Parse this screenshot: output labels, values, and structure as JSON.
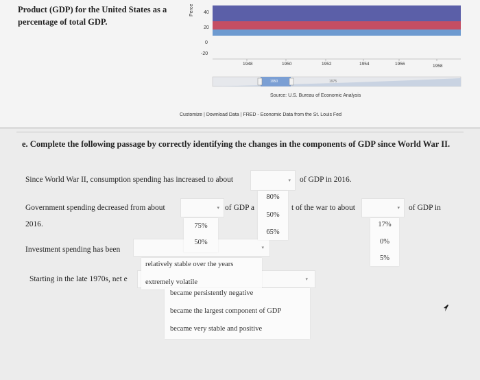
{
  "intro": {
    "text": "Product (GDP) for the United States as a percentage of total GDP."
  },
  "chart": {
    "ylabel": "Perce",
    "ytick_values": [
      40,
      20,
      0,
      -20
    ],
    "xticks": [
      "1948",
      "1950",
      "1952",
      "1954",
      "1956",
      "1958"
    ],
    "nav_labels": [
      "1950",
      "1975"
    ],
    "source": "Source: U.S. Bureau of Economic Analysis",
    "footer": {
      "customize": "Customize",
      "sep": "|",
      "download": "Download Data",
      "fred": "FRED - Economic Data from the St. Louis Fed"
    },
    "colors": {
      "top_band": "#5b5fa8",
      "mid_band": "#c54e63",
      "bottom_band": "#6d9ad0",
      "nav": "#7b9fd4"
    }
  },
  "question": {
    "heading": "e. Complete the following passage by correctly identifying the changes in the components of GDP since World War II.",
    "s1": {
      "pre": "Since World War II, consumption spending has increased to about",
      "post": "of GDP in 2016."
    },
    "s2": {
      "pre": "Government spending decreased from about",
      "mid": "of GDP a",
      "mid2": "t of the war to about",
      "post": "of GDP in",
      "year": "2016."
    },
    "s3": {
      "pre": "Investment spending has been"
    },
    "s4": {
      "pre": "Starting in the late 1970s, net e"
    },
    "menu_consumption": [
      "80%",
      "50%",
      "65%"
    ],
    "menu_gov_start": [
      "75%",
      "50%"
    ],
    "menu_gov_end": [
      "17%",
      "0%",
      "5%"
    ],
    "menu_investment": [
      "relatively stable over the years",
      "extremely volatile"
    ],
    "menu_net_exports": [
      "became persistently negative",
      "became the largest component of GDP",
      "became very stable and positive"
    ]
  }
}
